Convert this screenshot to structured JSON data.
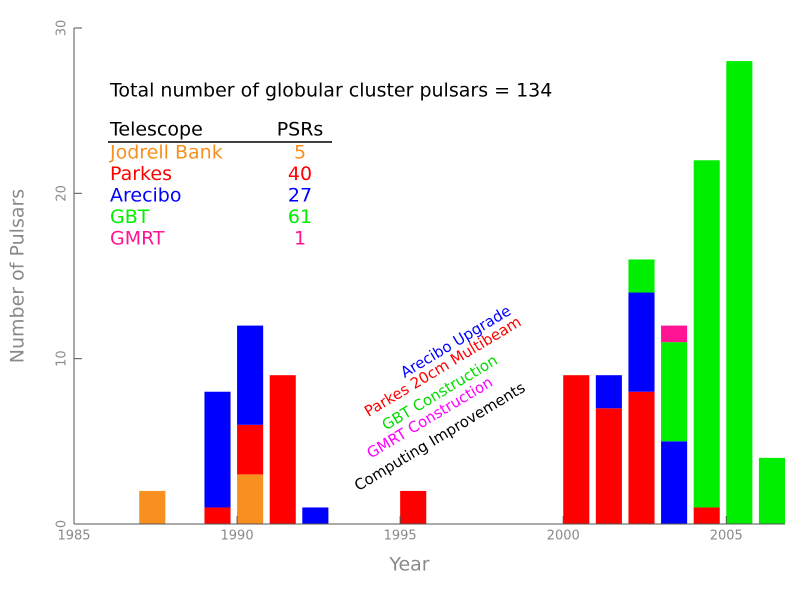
{
  "chart_data": {
    "type": "bar",
    "stacked": true,
    "bar_width": 0.8,
    "x_label": "Year",
    "y_label": "Number of Pulsars",
    "title": "Total number of globular cluster pulsars = 134",
    "legend_headers": [
      "Telescope",
      "PSRs"
    ],
    "x": [
      1987,
      1989,
      1990,
      1991,
      1992,
      1995,
      2000,
      2001,
      2002,
      2003,
      2004,
      2005,
      2006
    ],
    "series": [
      {
        "name": "Jodrell Bank",
        "color": "#f7901e",
        "total": 5,
        "values": [
          2,
          0,
          3,
          0,
          0,
          0,
          0,
          0,
          0,
          0,
          0,
          0,
          0
        ]
      },
      {
        "name": "Parkes",
        "color": "#ff0000",
        "total": 40,
        "values": [
          0,
          1,
          3,
          9,
          0,
          2,
          9,
          7,
          8,
          0,
          1,
          0,
          0
        ]
      },
      {
        "name": "Arecibo",
        "color": "#0000ff",
        "total": 27,
        "values": [
          0,
          7,
          6,
          0,
          1,
          0,
          0,
          2,
          6,
          5,
          0,
          0,
          0
        ]
      },
      {
        "name": "GBT",
        "color": "#00ee00",
        "total": 61,
        "values": [
          0,
          0,
          0,
          0,
          0,
          0,
          0,
          0,
          2,
          6,
          21,
          28,
          4
        ]
      },
      {
        "name": "GMRT",
        "color": "#ff1493",
        "total": 1,
        "values": [
          0,
          0,
          0,
          0,
          0,
          0,
          0,
          0,
          0,
          1,
          0,
          0,
          0
        ]
      }
    ],
    "annotations": [
      {
        "text": "Arecibo Upgrade",
        "color": "#0000ff"
      },
      {
        "text": "Parkes 20cm Multibeam",
        "color": "#ff0000"
      },
      {
        "text": "GBT Construction",
        "color": "#00dd00"
      },
      {
        "text": "GMRT Construction",
        "color": "#ff00ff"
      },
      {
        "text": "Computing Improvements",
        "color": "#000000"
      }
    ],
    "xlim": [
      1985,
      2006.8
    ],
    "ylim": [
      0,
      30
    ],
    "xticks": [
      1985,
      1990,
      1995,
      2000,
      2005
    ],
    "yticks": [
      0,
      10,
      20,
      30
    ]
  }
}
